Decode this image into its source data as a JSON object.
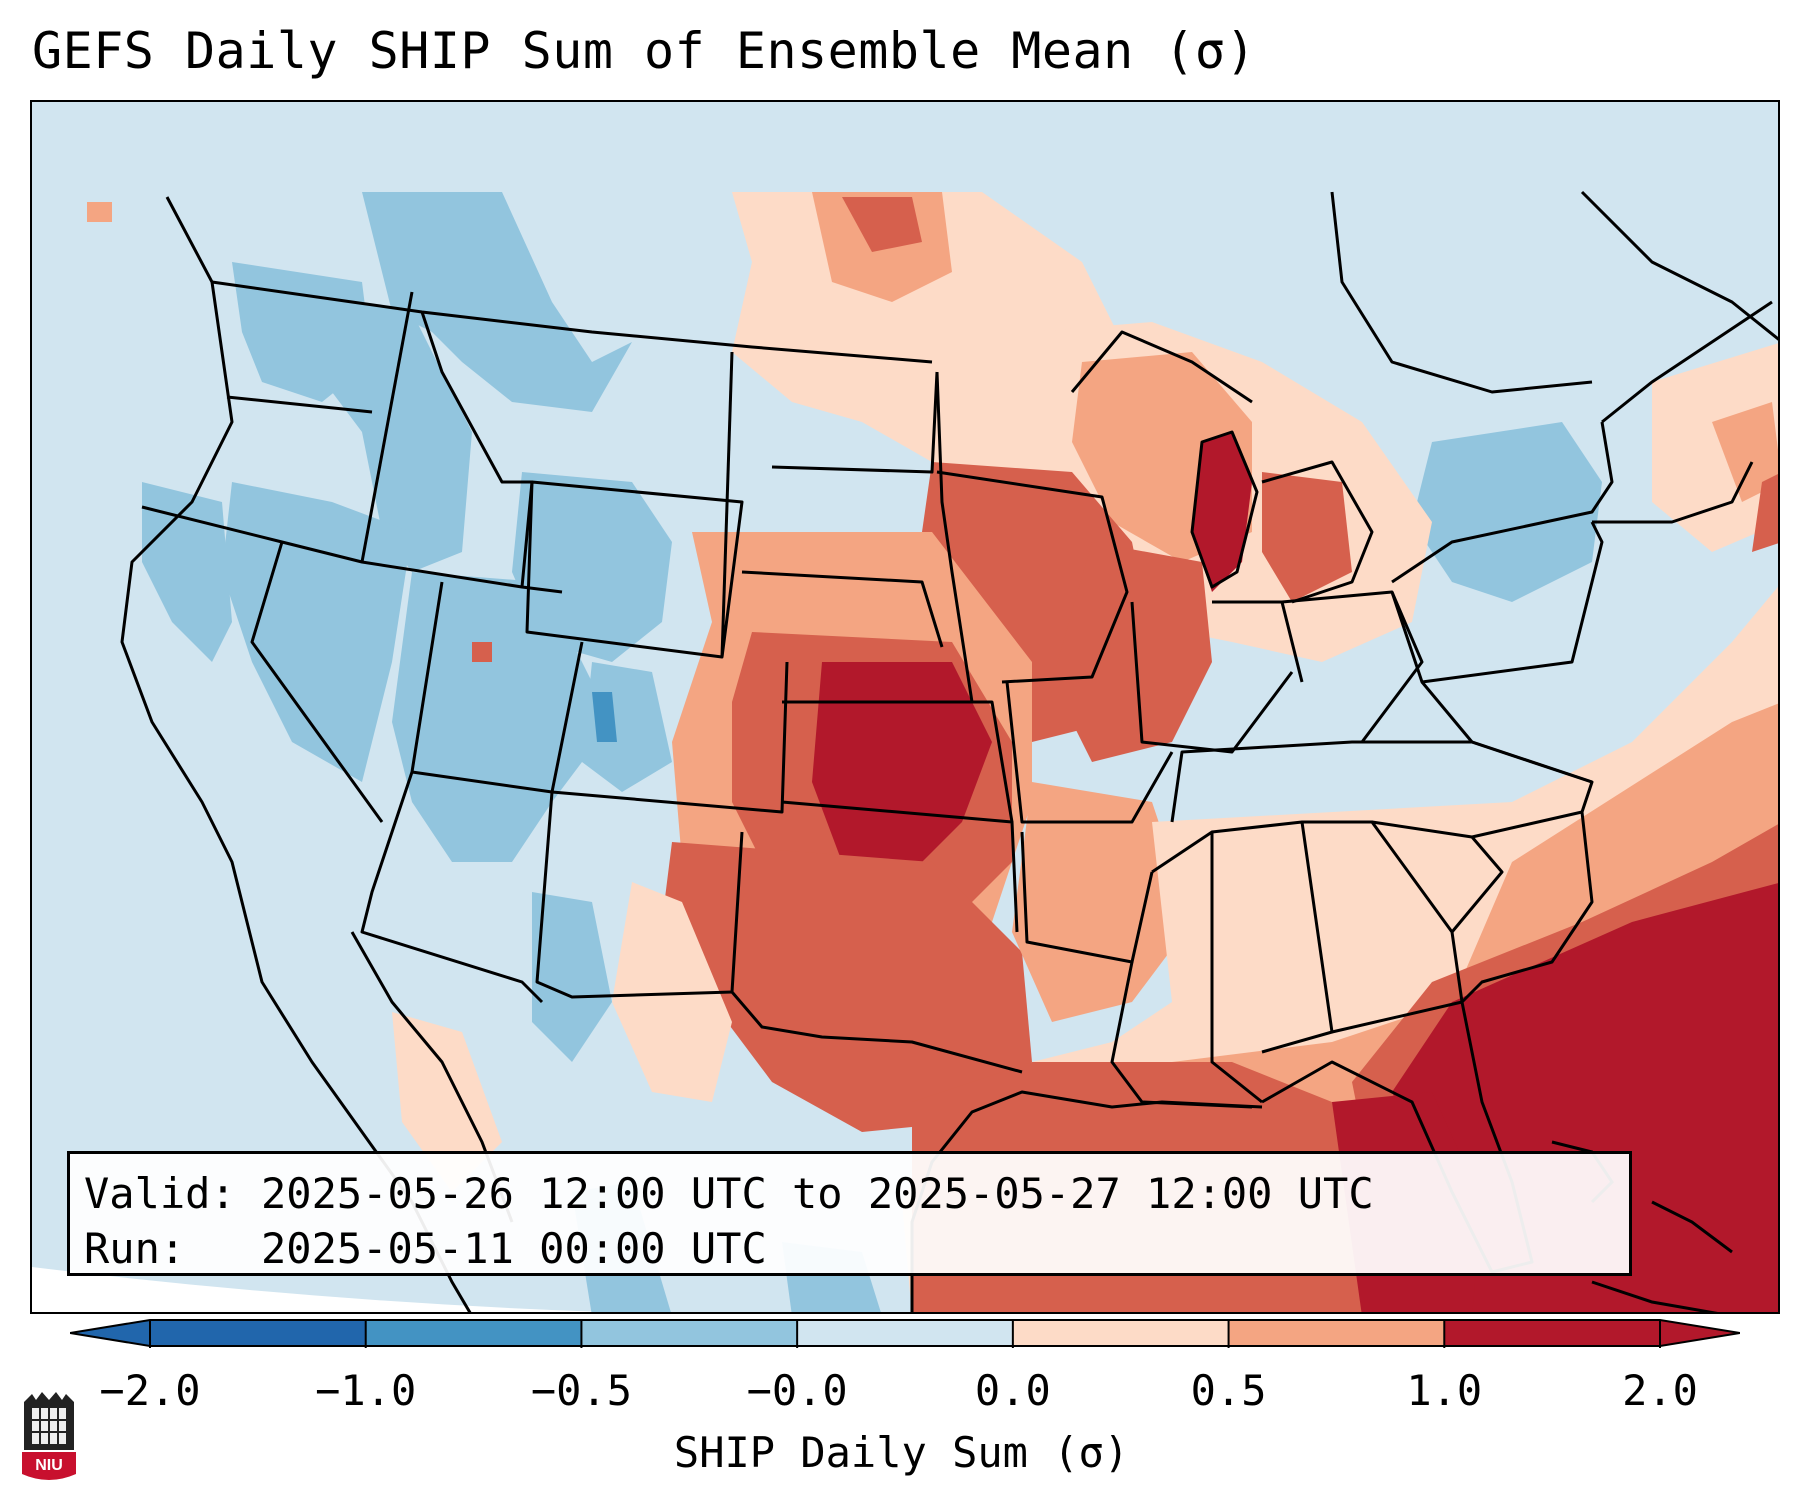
{
  "title": "GEFS Daily SHIP Sum of Ensemble Mean (σ)",
  "info": {
    "valid_label": "Valid:",
    "valid_value": "2025-05-26 12:00 UTC to 2025-05-27 12:00 UTC",
    "run_label": "Run:",
    "run_value": "2025-05-11 00:00 UTC"
  },
  "colorbar": {
    "label": "SHIP Daily Sum (σ)",
    "ticks": [
      "−2.0",
      "−1.0",
      "−0.5",
      "−0.0",
      "0.0",
      "0.5",
      "1.0",
      "2.0"
    ],
    "colors": [
      "#2166ac",
      "#4393c3",
      "#92c5de",
      "#d1e5f0",
      "#fddbc7",
      "#f4a582",
      "#d6604d",
      "#b2182b"
    ]
  },
  "logo": {
    "text": "NIU"
  },
  "colors": {
    "background": "#d1e5f0",
    "state_lines": "#000000",
    "frame": "#000000"
  }
}
